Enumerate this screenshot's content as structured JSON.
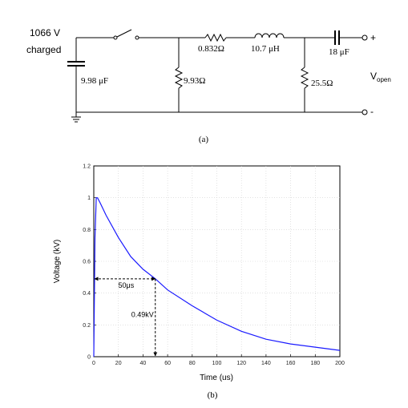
{
  "circuit": {
    "source_voltage": "1066 V",
    "source_state": "charged",
    "c1": "9.98 μF",
    "r1": "9.93Ω",
    "r2": "0.832Ω",
    "l1": "10.7 μH",
    "r3": "25.5Ω",
    "c2": "18 μF",
    "plus": "+",
    "minus": "-",
    "output_label": "V",
    "output_sub": "open",
    "panel_label": "(a)"
  },
  "plot": {
    "panel_label": "(b)",
    "annotation_time": "50μs",
    "annotation_voltage": "0.49kV",
    "line_color": "#1a1aff"
  },
  "chart_data": {
    "type": "line",
    "xlabel": "Time (us)",
    "ylabel": "Voltage (kV)",
    "xlim": [
      0,
      200
    ],
    "ylim": [
      0,
      1.2
    ],
    "xticks": [
      0,
      20,
      40,
      60,
      80,
      100,
      120,
      140,
      160,
      180,
      200
    ],
    "yticks": [
      0,
      0.2,
      0.4,
      0.6,
      0.8,
      1,
      1.2
    ],
    "grid": true,
    "series": [
      {
        "x": [
          0,
          1,
          2,
          3,
          5,
          10,
          20,
          30,
          40,
          50,
          60,
          80,
          100,
          120,
          140,
          160,
          180,
          200
        ],
        "values": [
          0,
          0.75,
          1.0,
          1.0,
          0.97,
          0.89,
          0.75,
          0.63,
          0.55,
          0.49,
          0.42,
          0.32,
          0.23,
          0.16,
          0.11,
          0.08,
          0.06,
          0.04
        ]
      }
    ],
    "annotations": [
      {
        "type": "hline",
        "y": 0.49,
        "x_from": 0,
        "x_to": 50
      },
      {
        "type": "vline",
        "x": 50,
        "y_from": 0.49,
        "y_to": 0
      }
    ]
  }
}
